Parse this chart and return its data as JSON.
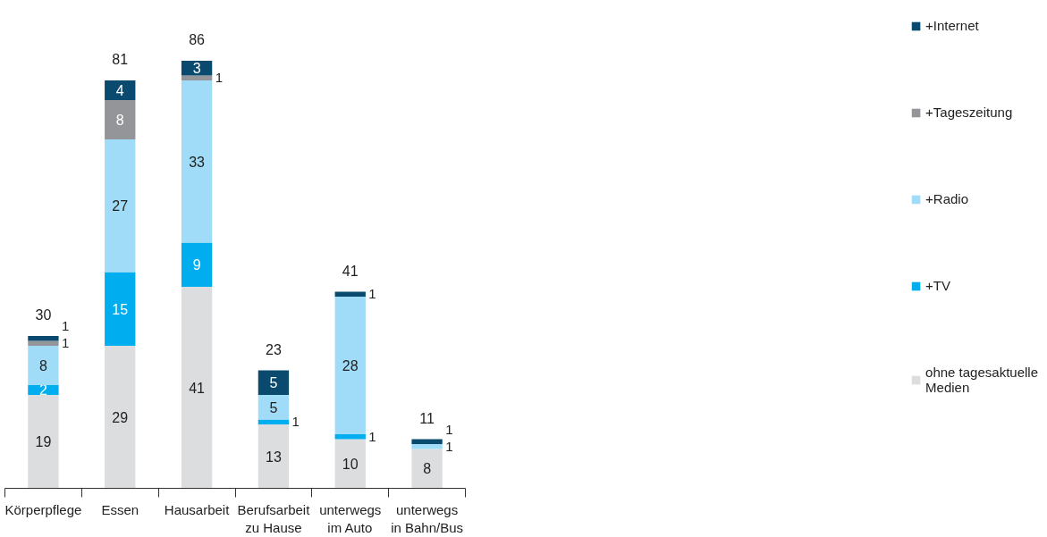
{
  "chart_data": {
    "type": "bar",
    "stacked": true,
    "data_labels": true,
    "legend": "right",
    "grid": false,
    "tick_labels": "x",
    "categories": [
      "Körperpflege",
      "Essen",
      "Hausarbeit",
      "Berufsarbeit\nzu Hause",
      "unterwegs\nim Auto",
      "unterwegs\nin Bahn/Bus"
    ],
    "series": [
      {
        "name": "ohne tagesaktuelle\nMedien",
        "color": "#dcdddf",
        "values": [
          19,
          29,
          41,
          13,
          10,
          8
        ]
      },
      {
        "name": "+TV",
        "color": "#00aeef",
        "values": [
          2,
          15,
          9,
          1,
          1,
          null
        ]
      },
      {
        "name": "+Radio",
        "color": "#a0dcf7",
        "values": [
          8,
          27,
          33,
          5,
          28,
          1
        ]
      },
      {
        "name": "+Tageszeitung",
        "color": "#939598",
        "values": [
          1,
          8,
          1,
          null,
          null,
          null
        ]
      },
      {
        "name": "+Internet",
        "color": "#0a4a6e",
        "values": [
          1,
          4,
          3,
          5,
          1,
          1
        ]
      }
    ],
    "totals": [
      "30",
      "81",
      "86",
      "23",
      "41",
      "11"
    ]
  }
}
